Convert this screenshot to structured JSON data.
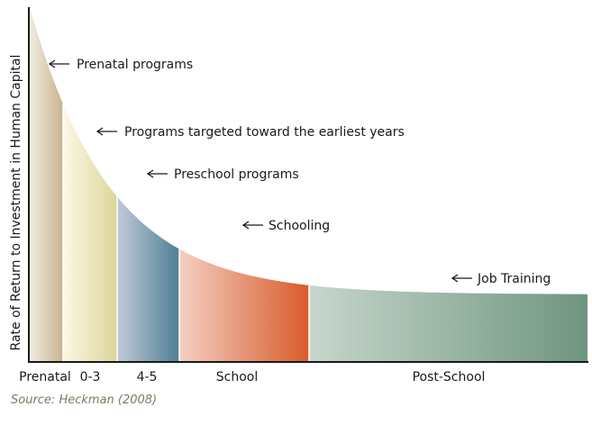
{
  "chart_data": {
    "type": "area",
    "ylabel": "Rate of Return to Investment in Human Capital",
    "xlabel": "",
    "categories": [
      "Prenatal",
      "0-3",
      "4-5",
      "School",
      "Post-School"
    ],
    "segments": [
      {
        "name": "Prenatal",
        "color_light": "#f2ece0",
        "color_dark": "#c7b48e"
      },
      {
        "name": "0-3",
        "color_light": "#fbf8e6",
        "color_dark": "#ddd59a"
      },
      {
        "name": "4-5",
        "color_light": "#c2cad8",
        "color_dark": "#4e7f95"
      },
      {
        "name": "School",
        "color_light": "#f4cfc2",
        "color_dark": "#d85b2b"
      },
      {
        "name": "Post-School",
        "color_light": "#c7d6cc",
        "color_dark": "#6f9581"
      }
    ],
    "annotations": [
      {
        "text": "Prenatal programs",
        "segment": "Prenatal"
      },
      {
        "text": "Programs targeted toward the earliest years",
        "segment": "0-3"
      },
      {
        "text": "Preschool programs",
        "segment": "4-5"
      },
      {
        "text": "Schooling",
        "segment": "School"
      },
      {
        "text": "Job Training",
        "segment": "Post-School"
      }
    ],
    "grid": false,
    "legend": "none"
  },
  "source": "Source: Heckman (2008)"
}
